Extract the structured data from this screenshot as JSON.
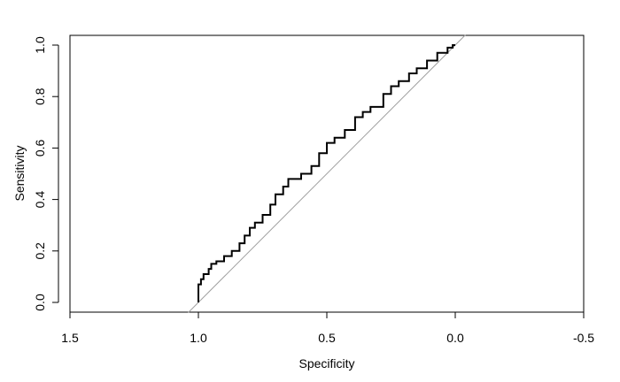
{
  "chart_data": {
    "type": "line",
    "title": "",
    "xlabel": "Specificity",
    "ylabel": "Sensitivity",
    "x_reversed": true,
    "xlim": [
      1.5,
      -0.5
    ],
    "ylim": [
      0,
      1
    ],
    "x_ticks": [
      1.5,
      1.0,
      0.5,
      0.0,
      -0.5
    ],
    "x_tick_labels": [
      "1.5",
      "1.0",
      "0.5",
      "0.0",
      "-0.5"
    ],
    "y_ticks": [
      0.0,
      0.2,
      0.4,
      0.6,
      0.8,
      1.0
    ],
    "y_tick_labels": [
      "0.0",
      "0.2",
      "0.4",
      "0.6",
      "0.8",
      "1.0"
    ],
    "grid": false,
    "legend": "none",
    "reference_line": {
      "description": "diagonal y = 1 - specificity",
      "color": "#a0a0a0"
    },
    "series": [
      {
        "color": "#000000",
        "points": [
          {
            "x": 1.0,
            "y": 0.0
          },
          {
            "x": 1.0,
            "y": 0.04
          },
          {
            "x": 0.99,
            "y": 0.07
          },
          {
            "x": 0.98,
            "y": 0.09
          },
          {
            "x": 0.96,
            "y": 0.11
          },
          {
            "x": 0.95,
            "y": 0.13
          },
          {
            "x": 0.93,
            "y": 0.15
          },
          {
            "x": 0.9,
            "y": 0.16
          },
          {
            "x": 0.87,
            "y": 0.18
          },
          {
            "x": 0.84,
            "y": 0.2
          },
          {
            "x": 0.82,
            "y": 0.23
          },
          {
            "x": 0.8,
            "y": 0.26
          },
          {
            "x": 0.78,
            "y": 0.29
          },
          {
            "x": 0.75,
            "y": 0.31
          },
          {
            "x": 0.72,
            "y": 0.34
          },
          {
            "x": 0.7,
            "y": 0.38
          },
          {
            "x": 0.67,
            "y": 0.42
          },
          {
            "x": 0.65,
            "y": 0.45
          },
          {
            "x": 0.6,
            "y": 0.48
          },
          {
            "x": 0.56,
            "y": 0.5
          },
          {
            "x": 0.53,
            "y": 0.53
          },
          {
            "x": 0.5,
            "y": 0.58
          },
          {
            "x": 0.47,
            "y": 0.62
          },
          {
            "x": 0.43,
            "y": 0.64
          },
          {
            "x": 0.39,
            "y": 0.67
          },
          {
            "x": 0.36,
            "y": 0.72
          },
          {
            "x": 0.33,
            "y": 0.74
          },
          {
            "x": 0.28,
            "y": 0.76
          },
          {
            "x": 0.25,
            "y": 0.81
          },
          {
            "x": 0.22,
            "y": 0.84
          },
          {
            "x": 0.18,
            "y": 0.86
          },
          {
            "x": 0.15,
            "y": 0.89
          },
          {
            "x": 0.11,
            "y": 0.91
          },
          {
            "x": 0.07,
            "y": 0.94
          },
          {
            "x": 0.03,
            "y": 0.97
          },
          {
            "x": 0.01,
            "y": 0.99
          },
          {
            "x": 0.0,
            "y": 1.0
          }
        ]
      }
    ]
  }
}
